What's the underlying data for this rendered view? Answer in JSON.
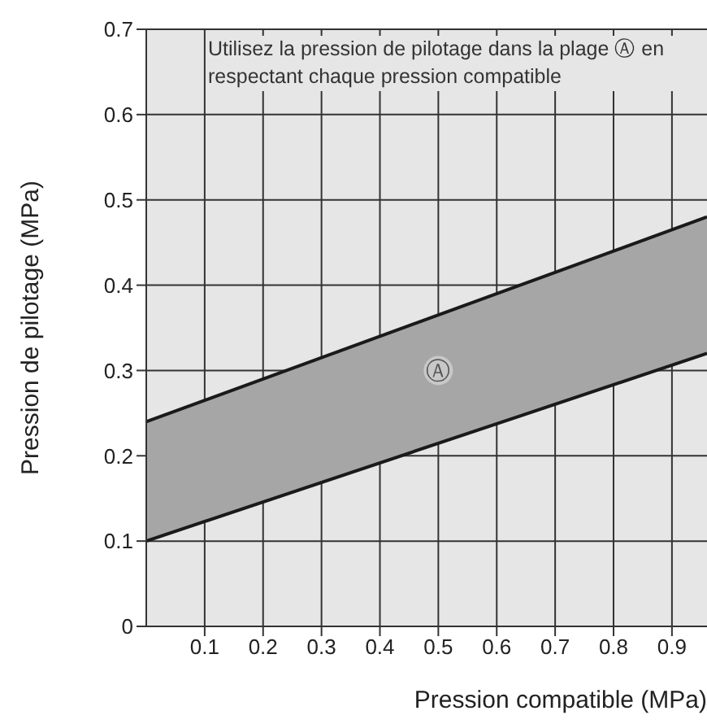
{
  "chart_data": {
    "type": "line",
    "xlabel": "Pression compatible (MPa)",
    "ylabel": "Pression de pilotage (MPa)",
    "x": [
      0,
      0.96
    ],
    "series": [
      {
        "color": "#1a1a1a",
        "values": [
          0.24,
          0.48
        ],
        "lower": [
          0.1,
          0.32
        ],
        "upper": [
          0.24,
          0.48
        ]
      },
      {
        "color": "#1a1a1a",
        "values": [
          0.1,
          0.32
        ]
      }
    ],
    "xlim": [
      0,
      0.96
    ],
    "xticks": [
      0.1,
      0.2,
      0.3,
      0.4,
      0.5,
      0.6,
      0.7,
      0.8,
      0.9
    ],
    "ylim": [
      0,
      0.7
    ],
    "yticks": [
      0,
      0.1,
      0.2,
      0.3,
      0.4,
      0.5,
      0.6,
      0.7
    ],
    "grid": true,
    "annotations": [
      "Utilisez la pression de pilotage dans la plage Ⓐ en respectant chaque pression compatible",
      {
        "text": "Ⓐ",
        "x": 0.5,
        "y": 0.3
      }
    ]
  }
}
